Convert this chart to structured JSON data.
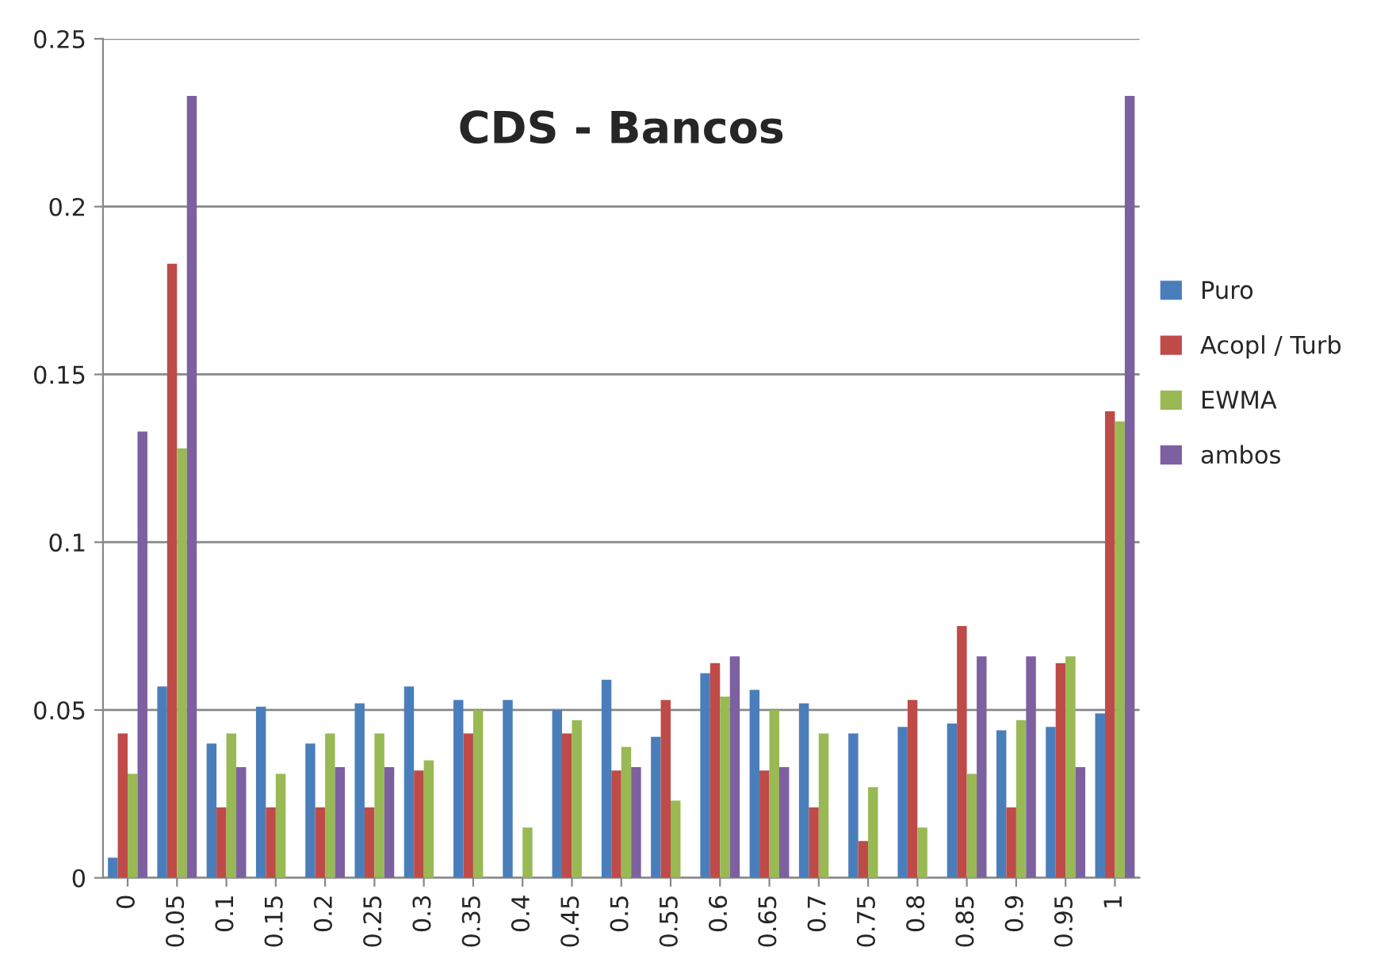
{
  "chart_data": {
    "type": "bar",
    "title": "CDS - Bancos",
    "categories": [
      "0",
      "0.05",
      "0.1",
      "0.15",
      "0.2",
      "0.25",
      "0.3",
      "0.35",
      "0.4",
      "0.45",
      "0.5",
      "0.55",
      "0.6",
      "0.65",
      "0.7",
      "0.75",
      "0.8",
      "0.85",
      "0.9",
      "0.95",
      "1"
    ],
    "series": [
      {
        "name": "Puro",
        "color": "#4a7ebb",
        "values": [
          0.006,
          0.057,
          0.04,
          0.051,
          0.04,
          0.052,
          0.057,
          0.053,
          0.053,
          0.05,
          0.059,
          0.042,
          0.061,
          0.056,
          0.052,
          0.043,
          0.045,
          0.046,
          0.044,
          0.045,
          0.049
        ]
      },
      {
        "name": "Acopl / Turb",
        "color": "#be4b48",
        "values": [
          0.043,
          0.183,
          0.021,
          0.021,
          0.021,
          0.021,
          0.032,
          0.043,
          null,
          0.043,
          0.032,
          0.053,
          0.064,
          0.032,
          0.021,
          0.011,
          0.053,
          0.075,
          0.021,
          0.064,
          0.139
        ]
      },
      {
        "name": "EWMA",
        "color": "#98b954",
        "values": [
          0.031,
          0.128,
          0.043,
          0.031,
          0.043,
          0.043,
          0.035,
          0.05,
          0.015,
          0.047,
          0.039,
          0.023,
          0.054,
          0.05,
          0.043,
          0.027,
          0.015,
          0.031,
          0.047,
          0.066,
          0.136
        ]
      },
      {
        "name": "ambos",
        "color": "#7d60a0",
        "values": [
          0.133,
          0.233,
          0.033,
          null,
          0.033,
          0.033,
          null,
          null,
          null,
          null,
          0.033,
          null,
          0.066,
          0.033,
          null,
          null,
          null,
          0.066,
          0.066,
          0.033,
          0.233
        ]
      }
    ],
    "ylim": [
      0,
      0.25
    ],
    "yticks": [
      0,
      0.05,
      0.1,
      0.15,
      0.2,
      0.25
    ],
    "grid": "y",
    "legend": "right"
  }
}
